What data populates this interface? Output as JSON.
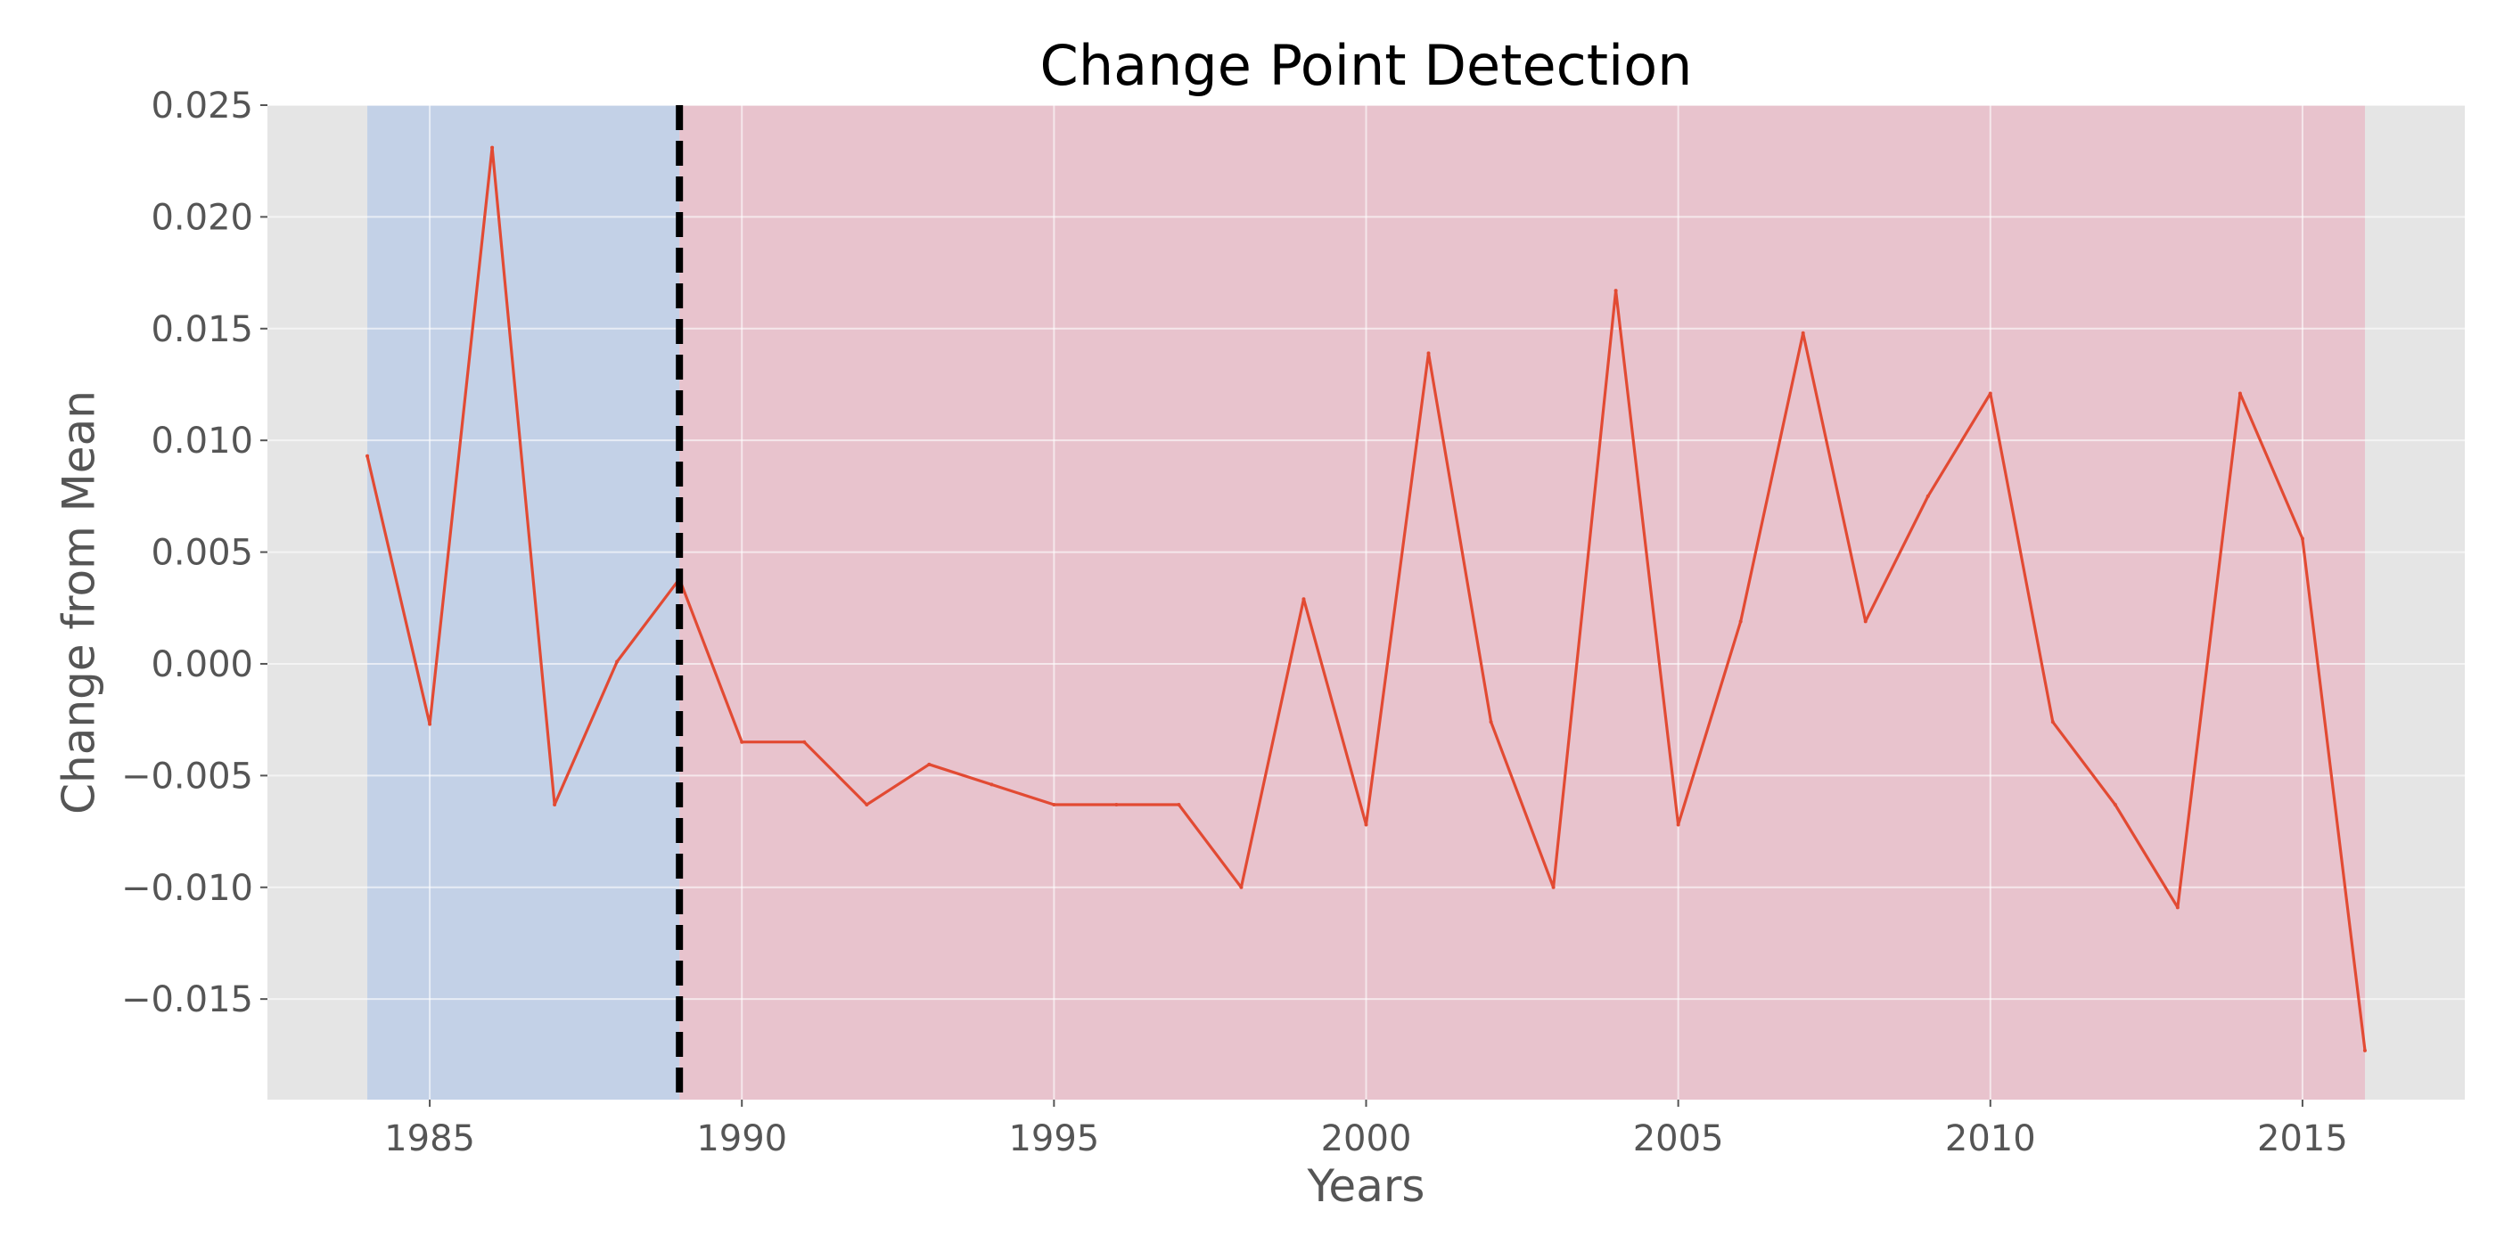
{
  "chart_data": {
    "type": "line",
    "title": "Change Point Detection",
    "xlabel": "Years",
    "ylabel": "Change from Mean",
    "xlim": [
      1982.4,
      2017.6
    ],
    "ylim": [
      -0.0195,
      0.025
    ],
    "xticks": [
      1985,
      1990,
      1995,
      2000,
      2005,
      2010,
      2015
    ],
    "yticks": [
      0.025,
      0.02,
      0.015,
      0.01,
      0.005,
      0.0,
      -0.005,
      -0.01,
      -0.015
    ],
    "ytick_labels": [
      "0.025",
      "0.020",
      "0.015",
      "0.010",
      "0.005",
      "0.000",
      "−0.005",
      "−0.010",
      "−0.015"
    ],
    "grid": true,
    "series": [
      {
        "x": [
          1984,
          1985,
          1986,
          1987,
          1988,
          1989,
          1990,
          1991,
          1992,
          1993,
          1994,
          1995,
          1996,
          1997,
          1998,
          1999,
          2000,
          2001,
          2002,
          2003,
          2004,
          2005,
          2006,
          2007,
          2008,
          2009,
          2010,
          2011,
          2012,
          2013,
          2014,
          2015,
          2016
        ],
        "values": [
          0.0093,
          -0.0027,
          0.0231,
          -0.0063,
          0.0001,
          0.0038,
          -0.0035,
          -0.0035,
          -0.0063,
          -0.0045,
          -0.0054,
          -0.0063,
          -0.0063,
          -0.0063,
          -0.01,
          0.0029,
          -0.0072,
          0.0139,
          -0.0026,
          -0.01,
          0.0167,
          -0.0072,
          0.0019,
          0.0148,
          0.0019,
          0.0075,
          0.0121,
          -0.0026,
          -0.0063,
          -0.0109,
          0.0121,
          0.0056,
          -0.0173
        ]
      }
    ],
    "regions": [
      {
        "start": 1984,
        "end": 1989
      },
      {
        "start": 1989,
        "end": 2016
      }
    ],
    "change_point": 1989,
    "colors": {
      "plot_background": "#e5e5e5",
      "grid": "#ffffff",
      "line": "#e24a33",
      "region_1": "#c3d1e7",
      "region_2": "#e8c3cd",
      "change_point_line": "#000000"
    }
  }
}
